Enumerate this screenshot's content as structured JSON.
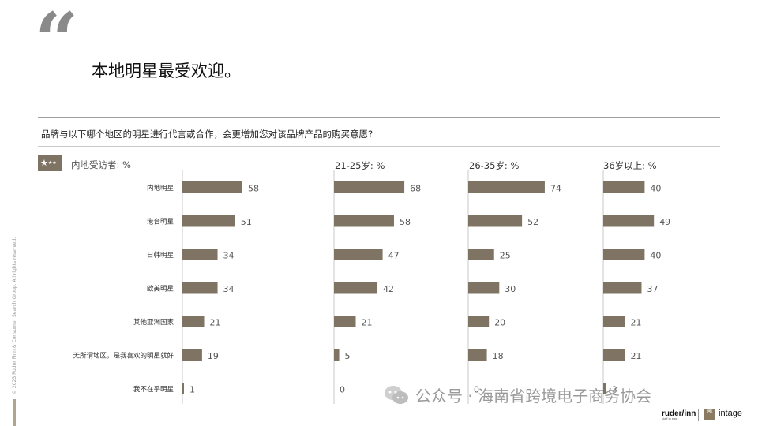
{
  "slide": {
    "quote_mark": "“",
    "headline": "本地明星最受欢迎。",
    "question": "品牌与以下哪个地区的明星进行代言或合作，会更增加您对该品牌产品的购买意愿?",
    "respondents": "内地受访者: %",
    "copyright": "© 2023 Ruder Finn & Consumer Search Group. All rights reserved.",
    "watermark": "公众号 · 海南省跨境电子商务协会",
    "logos": {
      "ruderfinn": "ruder/inn",
      "ruderfinn_sub": "staff in east",
      "box": "凯",
      "intage": "intage"
    }
  },
  "chart_data": {
    "type": "bar",
    "orientation": "horizontal",
    "unit": "%",
    "categories": [
      "内地明星",
      "港台明星",
      "日韩明星",
      "欧美明星",
      "其他亚洲国家",
      "无所谓地区，是我喜欢的明星就好",
      "我不在乎明星"
    ],
    "panels": [
      {
        "name": "",
        "values": [
          58,
          51,
          34,
          34,
          21,
          19,
          1
        ]
      },
      {
        "name": "21-25岁: %",
        "values": [
          68,
          58,
          47,
          42,
          21,
          5,
          0
        ]
      },
      {
        "name": "26-35岁: %",
        "values": [
          74,
          52,
          25,
          30,
          20,
          18,
          0
        ]
      },
      {
        "name": "36岁以上: %",
        "values": [
          40,
          49,
          40,
          37,
          21,
          21,
          3
        ]
      }
    ],
    "bar_color": "#7f7464",
    "axis_color": "#c8c8c8",
    "grid": false
  }
}
